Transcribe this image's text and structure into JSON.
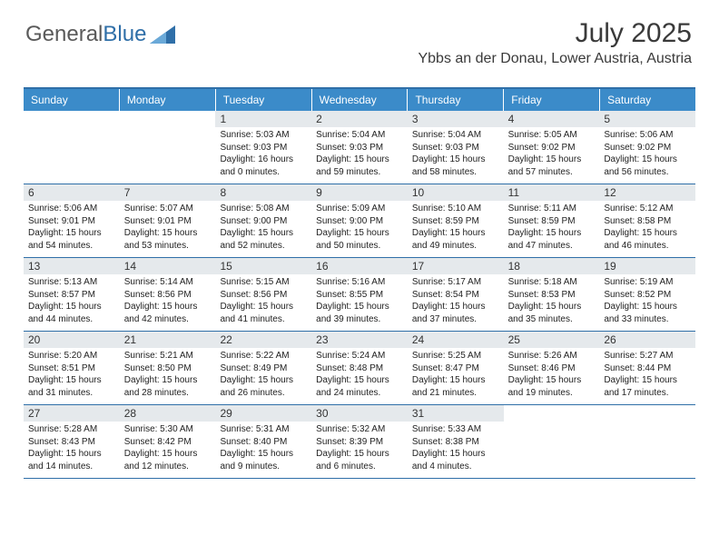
{
  "brand": {
    "part1": "General",
    "part2": "Blue"
  },
  "colors": {
    "accent": "#3b8bc9",
    "accent_dark": "#2f6fa8",
    "daynum_bg": "#e5e9ec",
    "text": "#3a3a3a",
    "background": "#ffffff"
  },
  "typography": {
    "title_fontsize": 30,
    "location_fontsize": 16,
    "dayhead_fontsize": 12,
    "daynum_fontsize": 12,
    "detail_fontsize": 10
  },
  "title": "July 2025",
  "location": "Ybbs an der Donau, Lower Austria, Austria",
  "day_headers": [
    "Sunday",
    "Monday",
    "Tuesday",
    "Wednesday",
    "Thursday",
    "Friday",
    "Saturday"
  ],
  "weeks": [
    [
      {
        "n": "",
        "sr": "",
        "ss": "",
        "dl": ""
      },
      {
        "n": "",
        "sr": "",
        "ss": "",
        "dl": ""
      },
      {
        "n": "1",
        "sr": "Sunrise: 5:03 AM",
        "ss": "Sunset: 9:03 PM",
        "dl": "Daylight: 16 hours and 0 minutes."
      },
      {
        "n": "2",
        "sr": "Sunrise: 5:04 AM",
        "ss": "Sunset: 9:03 PM",
        "dl": "Daylight: 15 hours and 59 minutes."
      },
      {
        "n": "3",
        "sr": "Sunrise: 5:04 AM",
        "ss": "Sunset: 9:03 PM",
        "dl": "Daylight: 15 hours and 58 minutes."
      },
      {
        "n": "4",
        "sr": "Sunrise: 5:05 AM",
        "ss": "Sunset: 9:02 PM",
        "dl": "Daylight: 15 hours and 57 minutes."
      },
      {
        "n": "5",
        "sr": "Sunrise: 5:06 AM",
        "ss": "Sunset: 9:02 PM",
        "dl": "Daylight: 15 hours and 56 minutes."
      }
    ],
    [
      {
        "n": "6",
        "sr": "Sunrise: 5:06 AM",
        "ss": "Sunset: 9:01 PM",
        "dl": "Daylight: 15 hours and 54 minutes."
      },
      {
        "n": "7",
        "sr": "Sunrise: 5:07 AM",
        "ss": "Sunset: 9:01 PM",
        "dl": "Daylight: 15 hours and 53 minutes."
      },
      {
        "n": "8",
        "sr": "Sunrise: 5:08 AM",
        "ss": "Sunset: 9:00 PM",
        "dl": "Daylight: 15 hours and 52 minutes."
      },
      {
        "n": "9",
        "sr": "Sunrise: 5:09 AM",
        "ss": "Sunset: 9:00 PM",
        "dl": "Daylight: 15 hours and 50 minutes."
      },
      {
        "n": "10",
        "sr": "Sunrise: 5:10 AM",
        "ss": "Sunset: 8:59 PM",
        "dl": "Daylight: 15 hours and 49 minutes."
      },
      {
        "n": "11",
        "sr": "Sunrise: 5:11 AM",
        "ss": "Sunset: 8:59 PM",
        "dl": "Daylight: 15 hours and 47 minutes."
      },
      {
        "n": "12",
        "sr": "Sunrise: 5:12 AM",
        "ss": "Sunset: 8:58 PM",
        "dl": "Daylight: 15 hours and 46 minutes."
      }
    ],
    [
      {
        "n": "13",
        "sr": "Sunrise: 5:13 AM",
        "ss": "Sunset: 8:57 PM",
        "dl": "Daylight: 15 hours and 44 minutes."
      },
      {
        "n": "14",
        "sr": "Sunrise: 5:14 AM",
        "ss": "Sunset: 8:56 PM",
        "dl": "Daylight: 15 hours and 42 minutes."
      },
      {
        "n": "15",
        "sr": "Sunrise: 5:15 AM",
        "ss": "Sunset: 8:56 PM",
        "dl": "Daylight: 15 hours and 41 minutes."
      },
      {
        "n": "16",
        "sr": "Sunrise: 5:16 AM",
        "ss": "Sunset: 8:55 PM",
        "dl": "Daylight: 15 hours and 39 minutes."
      },
      {
        "n": "17",
        "sr": "Sunrise: 5:17 AM",
        "ss": "Sunset: 8:54 PM",
        "dl": "Daylight: 15 hours and 37 minutes."
      },
      {
        "n": "18",
        "sr": "Sunrise: 5:18 AM",
        "ss": "Sunset: 8:53 PM",
        "dl": "Daylight: 15 hours and 35 minutes."
      },
      {
        "n": "19",
        "sr": "Sunrise: 5:19 AM",
        "ss": "Sunset: 8:52 PM",
        "dl": "Daylight: 15 hours and 33 minutes."
      }
    ],
    [
      {
        "n": "20",
        "sr": "Sunrise: 5:20 AM",
        "ss": "Sunset: 8:51 PM",
        "dl": "Daylight: 15 hours and 31 minutes."
      },
      {
        "n": "21",
        "sr": "Sunrise: 5:21 AM",
        "ss": "Sunset: 8:50 PM",
        "dl": "Daylight: 15 hours and 28 minutes."
      },
      {
        "n": "22",
        "sr": "Sunrise: 5:22 AM",
        "ss": "Sunset: 8:49 PM",
        "dl": "Daylight: 15 hours and 26 minutes."
      },
      {
        "n": "23",
        "sr": "Sunrise: 5:24 AM",
        "ss": "Sunset: 8:48 PM",
        "dl": "Daylight: 15 hours and 24 minutes."
      },
      {
        "n": "24",
        "sr": "Sunrise: 5:25 AM",
        "ss": "Sunset: 8:47 PM",
        "dl": "Daylight: 15 hours and 21 minutes."
      },
      {
        "n": "25",
        "sr": "Sunrise: 5:26 AM",
        "ss": "Sunset: 8:46 PM",
        "dl": "Daylight: 15 hours and 19 minutes."
      },
      {
        "n": "26",
        "sr": "Sunrise: 5:27 AM",
        "ss": "Sunset: 8:44 PM",
        "dl": "Daylight: 15 hours and 17 minutes."
      }
    ],
    [
      {
        "n": "27",
        "sr": "Sunrise: 5:28 AM",
        "ss": "Sunset: 8:43 PM",
        "dl": "Daylight: 15 hours and 14 minutes."
      },
      {
        "n": "28",
        "sr": "Sunrise: 5:30 AM",
        "ss": "Sunset: 8:42 PM",
        "dl": "Daylight: 15 hours and 12 minutes."
      },
      {
        "n": "29",
        "sr": "Sunrise: 5:31 AM",
        "ss": "Sunset: 8:40 PM",
        "dl": "Daylight: 15 hours and 9 minutes."
      },
      {
        "n": "30",
        "sr": "Sunrise: 5:32 AM",
        "ss": "Sunset: 8:39 PM",
        "dl": "Daylight: 15 hours and 6 minutes."
      },
      {
        "n": "31",
        "sr": "Sunrise: 5:33 AM",
        "ss": "Sunset: 8:38 PM",
        "dl": "Daylight: 15 hours and 4 minutes."
      },
      {
        "n": "",
        "sr": "",
        "ss": "",
        "dl": ""
      },
      {
        "n": "",
        "sr": "",
        "ss": "",
        "dl": ""
      }
    ]
  ]
}
